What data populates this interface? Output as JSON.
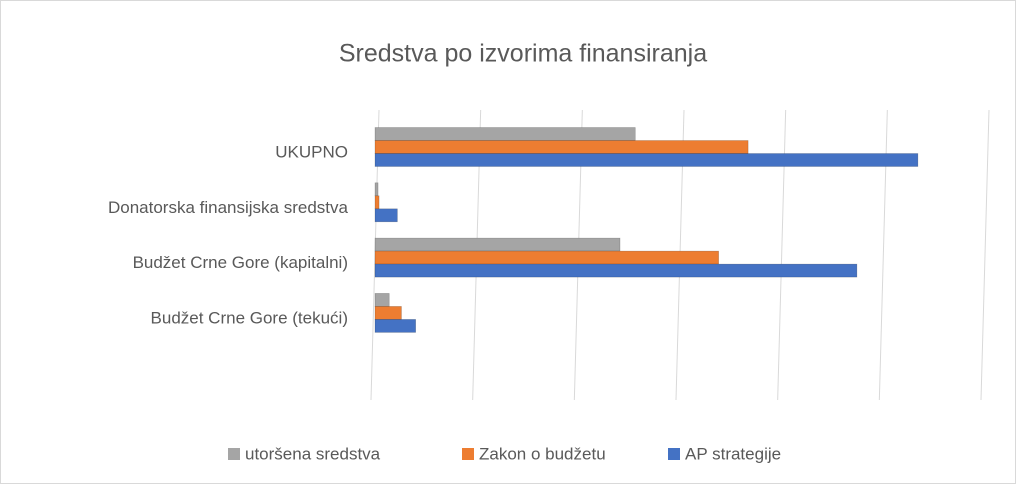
{
  "chart_data": {
    "type": "hbar3d",
    "title": "Sredstva po izvorima finansiranja",
    "categories": [
      "UKUPNO",
      "Donatorska finansijska sredstva",
      "Budžet Crne Gore (kapitalni)",
      "Budžet Crne Gore (tekući)"
    ],
    "series": [
      {
        "name": "utoršena sredstva",
        "color": "#a5a5a5",
        "values": [
          2.56,
          0.03,
          2.41,
          0.14
        ]
      },
      {
        "name": "Zakon o budžetu",
        "color": "#ed7d31",
        "values": [
          3.67,
          0.04,
          3.38,
          0.26
        ]
      },
      {
        "name": "AP strategije",
        "color": "#4472c4",
        "values": [
          5.34,
          0.22,
          4.74,
          0.4
        ]
      }
    ],
    "xlim": [
      0,
      6
    ],
    "xticks": [
      0,
      1,
      2,
      3,
      4,
      5,
      6
    ],
    "tick_labels": false,
    "grid": true,
    "legend": "bottom"
  }
}
